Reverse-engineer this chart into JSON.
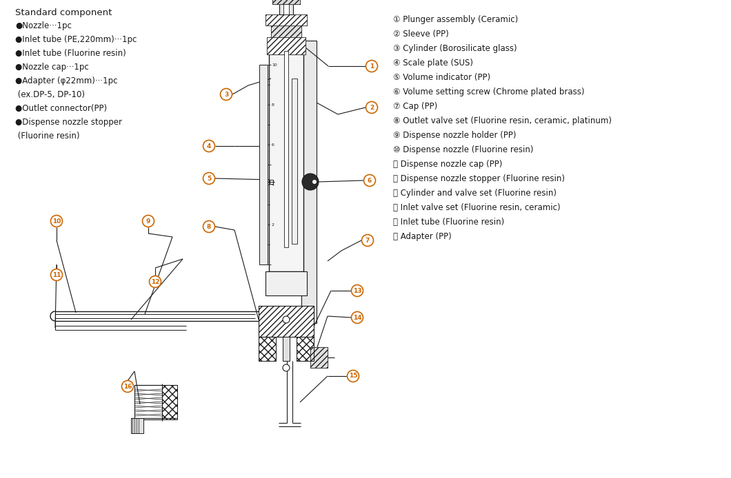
{
  "bg_color": "#ffffff",
  "line_color": "#1a1a1a",
  "circle_edge_color": "#cc6600",
  "circle_face_color": "#ffffff",
  "circle_text_color": "#cc6600",
  "title_text": "Standard component",
  "left_items": [
    "●Nozzle···1pc",
    "●Inlet tube (PE,220mm)···1pc",
    "●Inlet tube (Fluorine resin)",
    "●Nozzle cap···1pc",
    "●Adapter (φ22mm)···1pc",
    " (ex.DP-5, DP-10)",
    "●Outlet connector(PP)",
    "●Dispense nozzle stopper",
    " (Fluorine resin)"
  ],
  "right_items": [
    "① Plunger assembly (Ceramic)",
    "② Sleeve (PP)",
    "③ Cylinder (Borosilicate glass)",
    "④ Scale plate (SUS)",
    "⑤ Volume indicator (PP)",
    "⑥ Volume setting screw (Chrome plated brass)",
    "⑦ Cap (PP)",
    "⑧ Outlet valve set (Fluorine resin, ceramic, platinum)",
    "⑨ Dispense nozzle holder (PP)",
    "⑩ Dispense nozzle (Fluorine resin)",
    "⑪ Dispense nozzle cap (PP)",
    "⑫ Dispense nozzle stopper (Fluorine resin)",
    "⑬ Cylinder and valve set (Fluorine resin)",
    "⑭ Inlet valve set (Fluorine resin, ceramic)",
    "⑮ Inlet tube (Fluorine resin)",
    "⑯ Adapter (PP)"
  ],
  "figsize": [
    10.6,
    6.94
  ],
  "dpi": 100
}
